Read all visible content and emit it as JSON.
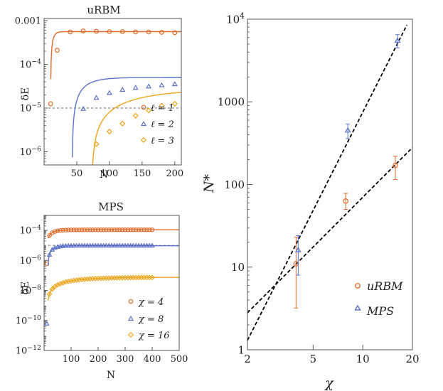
{
  "colors": {
    "orange": "#e06b2a",
    "blue": "#5b72c8",
    "gold": "#eea41a",
    "axis": "#555555",
    "ref": "#888888"
  },
  "chart_data": [
    {
      "type": "scatter",
      "title": "uRBM",
      "xlabel": "N",
      "ylabel": "δE",
      "xscale": "linear",
      "yscale": "log",
      "xlim": [
        0,
        210
      ],
      "ylim": [
        5e-07,
        0.00112
      ],
      "xticks": [
        50,
        100,
        150,
        200
      ],
      "xtick_labels": [
        "50",
        "100",
        "150",
        "200"
      ],
      "yticks": [
        1e-06,
        1e-05,
        0.0001,
        0.001
      ],
      "ytick_labels": [
        [
          "10",
          "−6"
        ],
        [
          "10",
          "−5"
        ],
        [
          "10",
          "−4"
        ],
        [
          "0.001",
          ""
        ]
      ],
      "reference_line": 1e-05,
      "series": [
        {
          "name": "ℓ = 1",
          "marker": "circle",
          "color": "#e06b2a",
          "fit": {
            "A": 0.00056,
            "N0": 10,
            "d": 3.5
          },
          "x": [
            10,
            20,
            40,
            60,
            80,
            100,
            120,
            140,
            160,
            180,
            200
          ],
          "y": [
            1.25e-05,
            0.00021,
            0.00055,
            0.00058,
            0.00057,
            0.00056,
            0.00056,
            0.00055,
            0.00055,
            0.00054,
            0.00053
          ]
        },
        {
          "name": "ℓ = 2",
          "marker": "triangle",
          "color": "#5b72c8",
          "fit": {
            "A": 5e-05,
            "N0": 43,
            "d": 20
          },
          "x": [
            60,
            80,
            100,
            120,
            140,
            160,
            180,
            200
          ],
          "y": [
            9.5e-06,
            1.7e-05,
            2.2e-05,
            2.6e-05,
            2.9e-05,
            3.1e-05,
            3.3e-05,
            3.5e-05
          ]
        },
        {
          "name": "ℓ = 3",
          "marker": "diamond",
          "color": "#eea41a",
          "fit": {
            "A": 2.8e-05,
            "N0": 73,
            "d": 80
          },
          "x": [
            80,
            100,
            120,
            140,
            160,
            180,
            200
          ],
          "y": [
            1.5e-06,
            2.9e-06,
            4.4e-06,
            6.7e-06,
            8.8e-06,
            1.13e-05,
            1.25e-05
          ]
        }
      ]
    },
    {
      "type": "scatter",
      "title": "MPS",
      "xlabel": "N",
      "ylabel": "δE",
      "xscale": "linear",
      "yscale": "log",
      "xlim": [
        0,
        500
      ],
      "ylim": [
        1e-12,
        0.001
      ],
      "xticks": [
        100,
        200,
        300,
        400,
        500
      ],
      "xtick_labels": [
        "100",
        "200",
        "300",
        "400",
        "500"
      ],
      "yticks": [
        1e-12,
        1e-10,
        1e-08,
        1e-06,
        0.0001
      ],
      "ytick_labels": [
        [
          "10",
          "−12"
        ],
        [
          "10",
          "−10"
        ],
        [
          "10",
          "−8"
        ],
        [
          "10",
          "−6"
        ],
        [
          "10",
          "−4"
        ]
      ],
      "reference_line": 1e-05,
      "series": [
        {
          "name": "χ = 4",
          "marker": "circle",
          "color": "#e06b2a",
          "A": 0.00011,
          "c": 0.95,
          "k": 0.045,
          "x_start": 20,
          "x_step": 10,
          "x_end": 400,
          "extra": [
            {
              "x": 10,
              "y": 6e-07
            }
          ]
        },
        {
          "name": "χ = 8",
          "marker": "triangle",
          "color": "#5b72c8",
          "A": 9.5e-06,
          "c": 0.9985,
          "k": 0.0475,
          "x_start": 20,
          "x_step": 10,
          "x_end": 400,
          "extra": [
            {
              "x": 10,
              "y": 6e-11
            }
          ]
        },
        {
          "name": "χ = 16",
          "marker": "diamond",
          "color": "#eea41a",
          "A": 7.5e-08,
          "c": 0.9994,
          "k": 0.0098,
          "x_start": 20,
          "x_step": 10,
          "x_end": 400,
          "extra": []
        }
      ]
    },
    {
      "type": "scatter",
      "title": "",
      "xlabel": "χ",
      "ylabel": "N*",
      "xscale": "log",
      "yscale": "log",
      "xlim": [
        2,
        20
      ],
      "ylim": [
        1,
        10000
      ],
      "xticks": [
        2,
        5,
        10,
        20
      ],
      "xtick_labels": [
        "2",
        "5",
        "10",
        "20"
      ],
      "yticks": [
        1,
        10,
        100,
        1000,
        10000
      ],
      "ytick_labels": [
        [
          "1",
          ""
        ],
        [
          "10",
          ""
        ],
        [
          "100",
          ""
        ],
        [
          "1000",
          ""
        ],
        [
          "10",
          "4"
        ]
      ],
      "series": [
        {
          "name": "uRBM",
          "marker": "circle",
          "color": "#e06b2a",
          "x": [
            4,
            8,
            16
          ],
          "y": [
            11,
            63,
            170
          ],
          "err_low": [
            3.2,
            50,
            115
          ],
          "err_high": [
            23,
            78,
            220
          ]
        },
        {
          "name": "MPS",
          "marker": "triangle",
          "color": "#5b72c8",
          "x": [
            4,
            8,
            16
          ],
          "y": [
            16,
            450,
            5500
          ],
          "err_low": [
            8,
            360,
            4500
          ],
          "err_high": [
            24,
            540,
            6500
          ]
        }
      ],
      "fit_lines": [
        {
          "x": [
            2,
            20
          ],
          "y": [
            2.8,
            280
          ]
        },
        {
          "x": [
            2,
            18.5
          ],
          "y": [
            1.3,
            8500
          ]
        }
      ]
    }
  ]
}
